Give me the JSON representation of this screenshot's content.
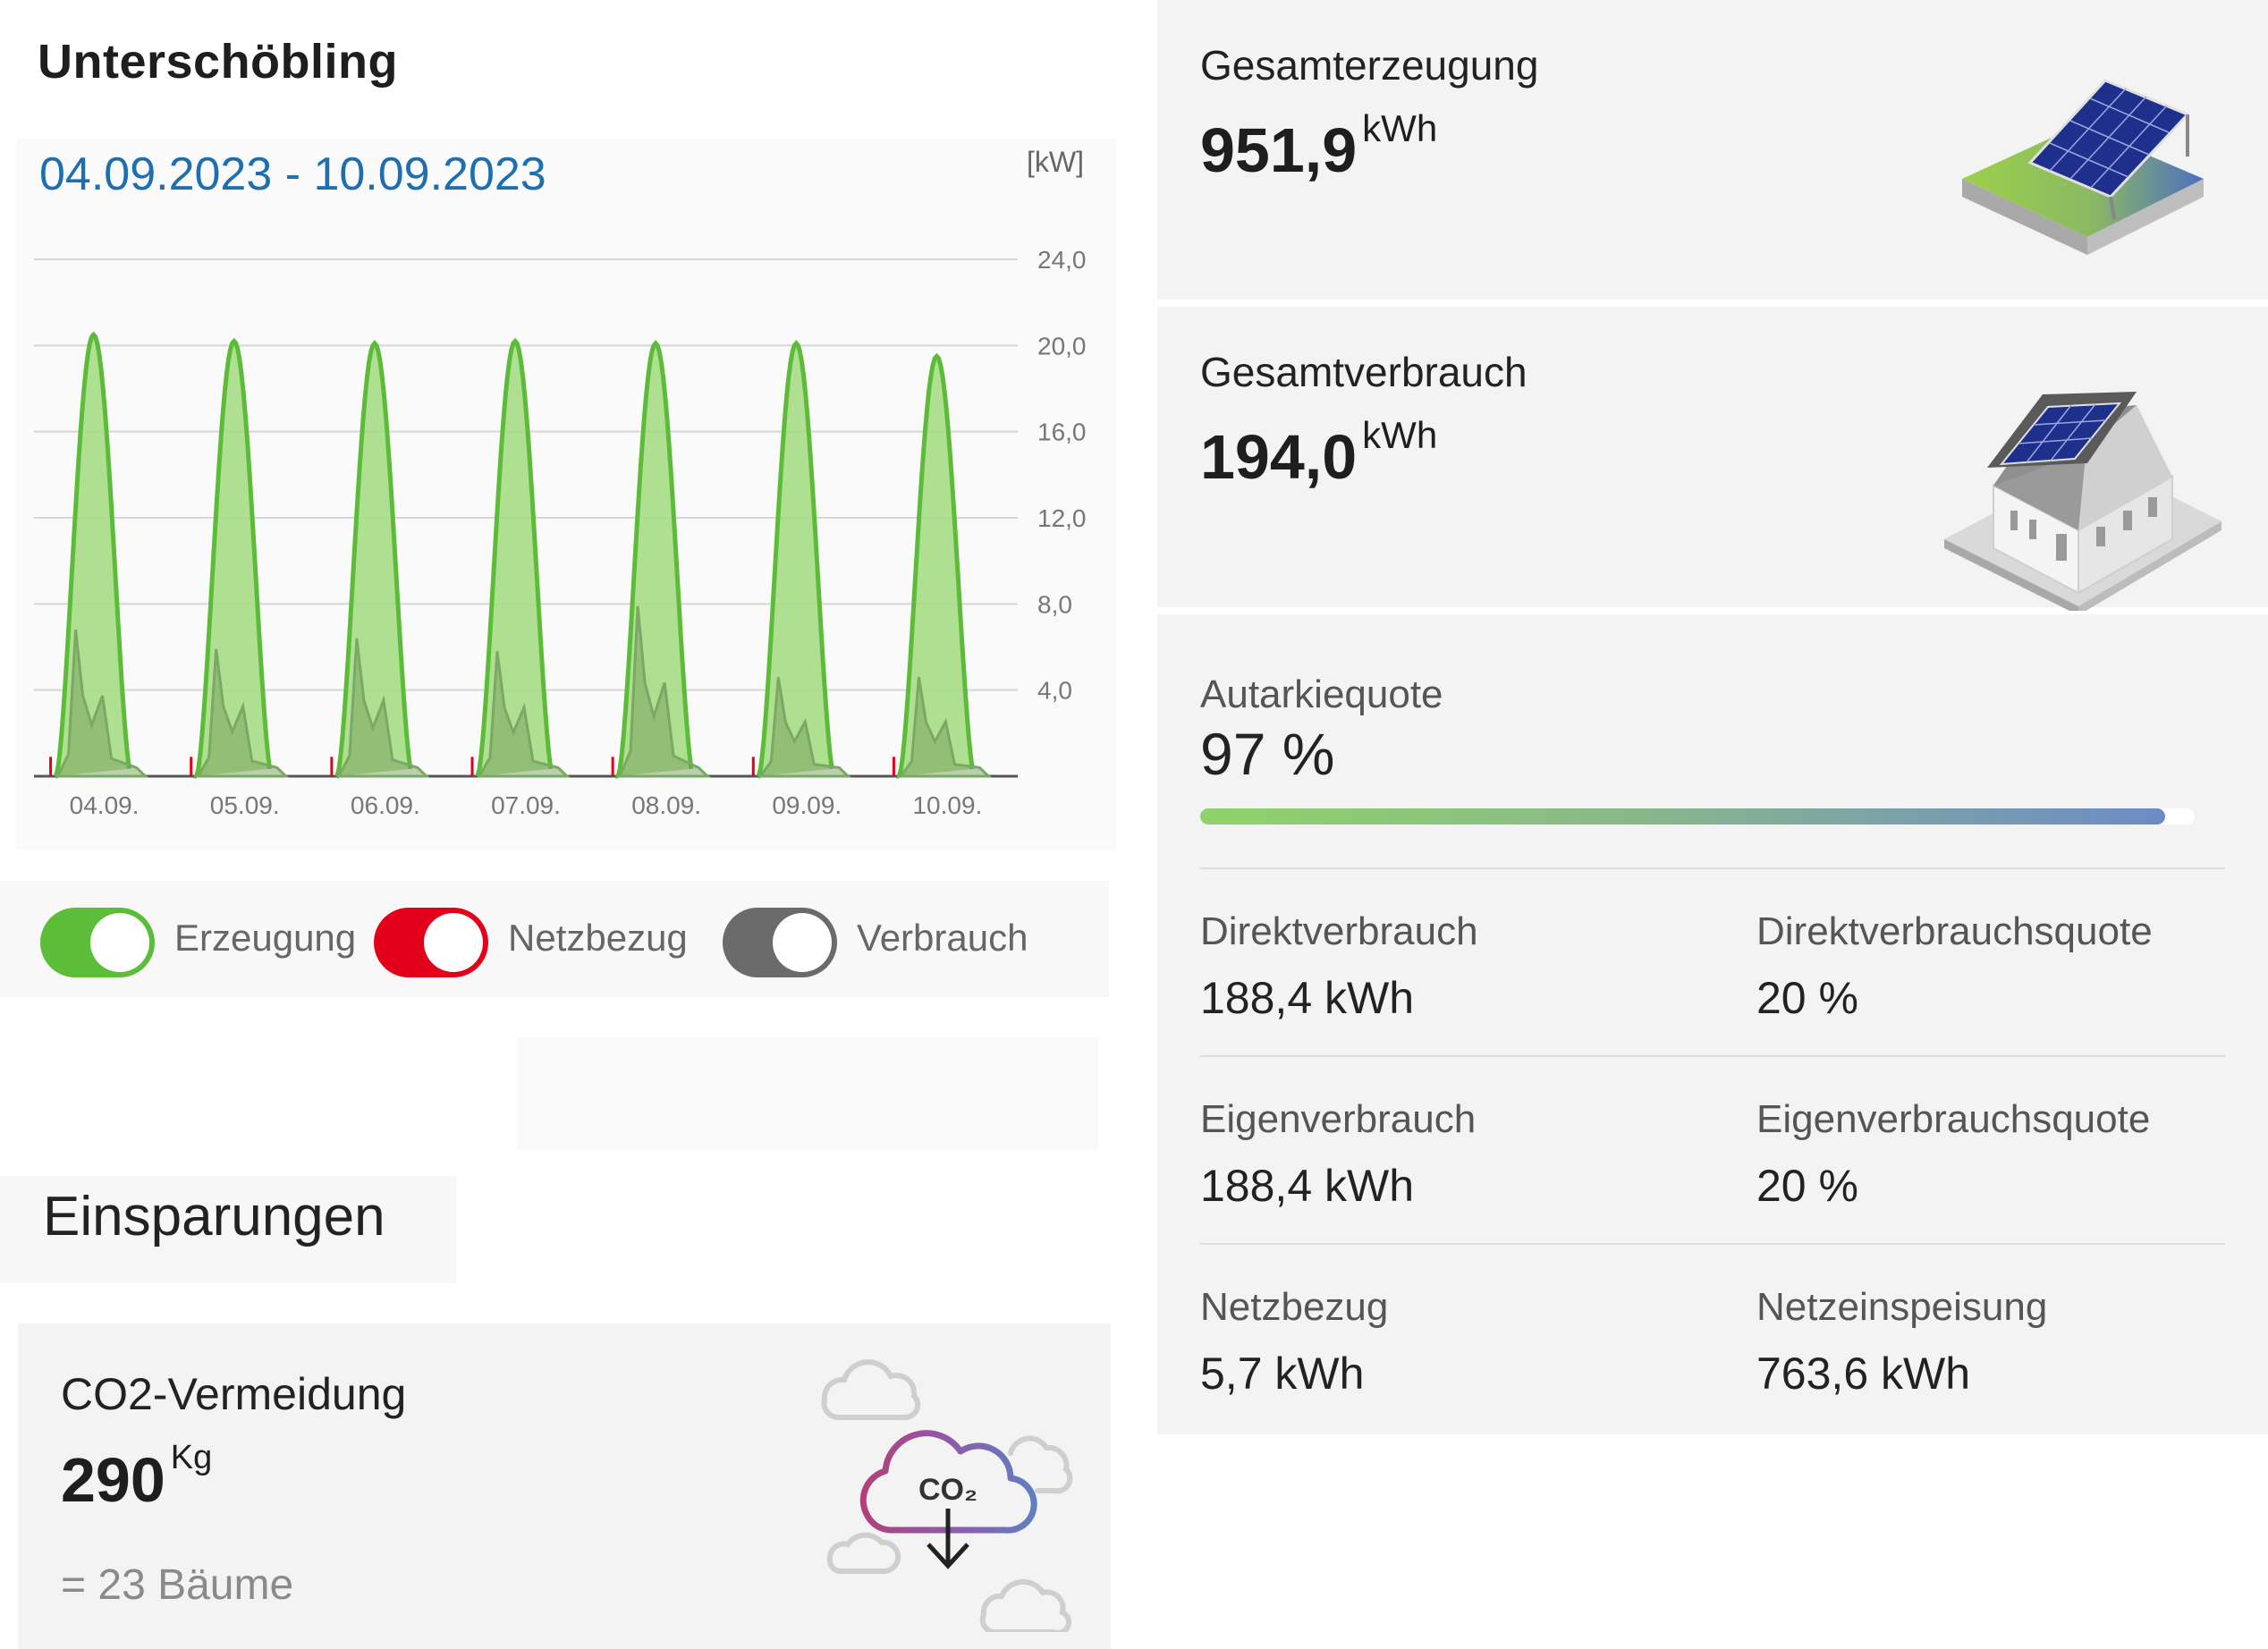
{
  "header": {
    "title": "Unterschöbling"
  },
  "chart_panel": {
    "date_range": "04.09.2023 - 10.09.2023",
    "unit": "[kW]"
  },
  "chart_data": {
    "type": "area",
    "ylabel": "[kW]",
    "ylim": [
      0,
      24
    ],
    "yticks": [
      "24,0",
      "20,0",
      "16,0",
      "12,0",
      "8,0",
      "4,0"
    ],
    "ytick_values": [
      24,
      20,
      16,
      12,
      8,
      4
    ],
    "categories": [
      "04.09.",
      "05.09.",
      "06.09.",
      "07.09.",
      "08.09.",
      "09.09.",
      "10.09."
    ],
    "grid": true,
    "series": [
      {
        "name": "Erzeugung",
        "color": "#5dbb3a",
        "daily_peak_kw": [
          20.5,
          20.2,
          20.1,
          20.2,
          20.1,
          20.1,
          19.5
        ]
      },
      {
        "name": "Verbrauch",
        "color": "#777777",
        "daily_peak_kw": [
          6.8,
          5.9,
          6.4,
          5.8,
          7.9,
          4.6,
          4.6
        ]
      },
      {
        "name": "Netzbezug",
        "color": "#e2001a",
        "daily_peak_kw": [
          0.3,
          0.3,
          0.3,
          0.3,
          0.3,
          0.3,
          0.3
        ]
      }
    ]
  },
  "legend": {
    "toggles": [
      {
        "label": "Erzeugung",
        "color": "#5cbd38",
        "on": true
      },
      {
        "label": "Netzbezug",
        "color": "#e2001a",
        "on": true
      },
      {
        "label": "Verbrauch",
        "color": "#6b6b6b",
        "on": true
      }
    ]
  },
  "savings": {
    "heading": "Einsparungen",
    "co2": {
      "title": "CO2-Vermeidung",
      "value": "290",
      "unit": "Kg",
      "equivalent": "= 23 Bäume",
      "icon": "co2-cloud-icon",
      "icon_text": "CO₂"
    }
  },
  "generation": {
    "title": "Gesamterzeugung",
    "value": "951,9",
    "unit": "kWh",
    "icon": "solar-panel-icon"
  },
  "consumption": {
    "title": "Gesamtverbrauch",
    "value": "194,0",
    "unit": "kWh",
    "icon": "house-icon"
  },
  "autarky": {
    "label": "Autarkiequote",
    "value": "97 %",
    "fraction": 0.97
  },
  "stats": [
    {
      "label": "Direktverbrauch",
      "value": "188,4 kWh"
    },
    {
      "label": "Direktverbrauchsquote",
      "value": "20 %"
    },
    {
      "label": "Eigenverbrauch",
      "value": "188,4 kWh"
    },
    {
      "label": "Eigenverbrauchsquote",
      "value": "20 %"
    },
    {
      "label": "Netzbezug",
      "value": "5,7 kWh"
    },
    {
      "label": "Netzeinspeisung",
      "value": "763,6 kWh"
    }
  ]
}
